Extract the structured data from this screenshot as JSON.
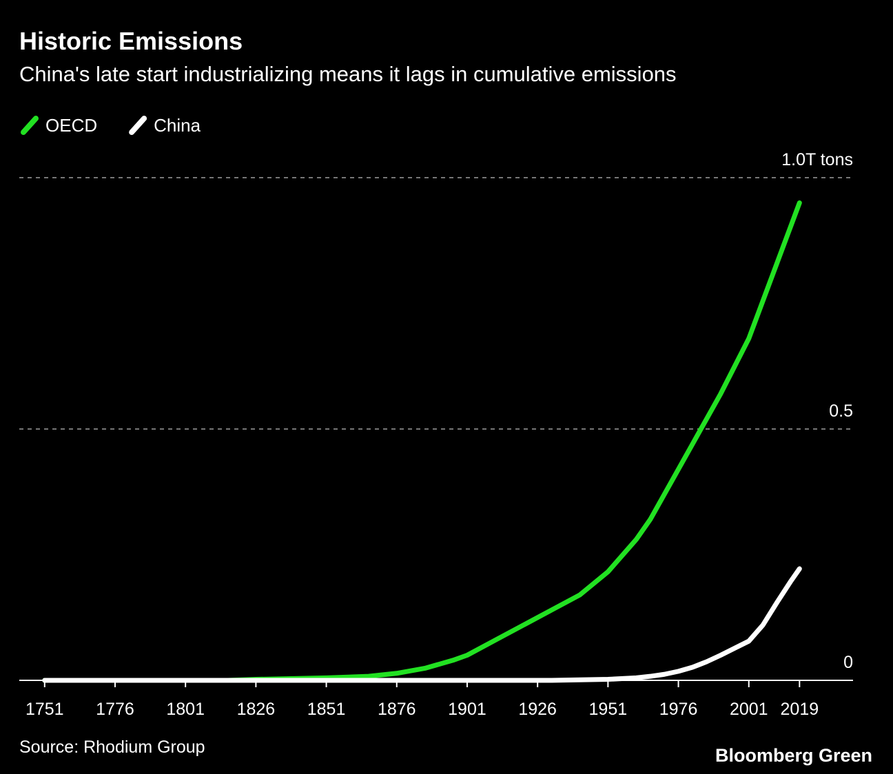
{
  "chart_data": {
    "type": "line",
    "title": "Historic Emissions",
    "subtitle": "China's late start industrializing means it lags in cumulative emissions",
    "source": "Source: Rhodium Group",
    "brand": "Bloomberg Green",
    "x": [
      1751,
      1776,
      1801,
      1816,
      1826,
      1851,
      1866,
      1876,
      1886,
      1896,
      1901,
      1911,
      1921,
      1931,
      1941,
      1951,
      1961,
      1966,
      1971,
      1976,
      1981,
      1986,
      1991,
      1996,
      2001,
      2006,
      2011,
      2016,
      2019
    ],
    "series": [
      {
        "name": "OECD",
        "color": "#22e122",
        "values": [
          0,
          0,
          0,
          0,
          0.002,
          0.005,
          0.008,
          0.014,
          0.024,
          0.04,
          0.05,
          0.08,
          0.11,
          0.14,
          0.17,
          0.216,
          0.28,
          0.32,
          0.37,
          0.42,
          0.47,
          0.52,
          0.57,
          0.625,
          0.68,
          0.755,
          0.83,
          0.905,
          0.95
        ]
      },
      {
        "name": "China",
        "color": "#ffffff",
        "values": [
          0,
          0,
          0,
          0,
          0,
          0,
          0,
          0,
          0,
          0,
          0,
          0,
          0,
          0,
          0.001,
          0.002,
          0.005,
          0.008,
          0.012,
          0.018,
          0.026,
          0.037,
          0.05,
          0.064,
          0.078,
          0.11,
          0.155,
          0.198,
          0.222
        ]
      }
    ],
    "xlim": [
      1742,
      2038
    ],
    "xticks": [
      1751,
      1776,
      1801,
      1826,
      1851,
      1876,
      1901,
      1926,
      1951,
      1976,
      2001,
      2019
    ],
    "ylim": [
      0,
      1
    ],
    "yticks": [
      0,
      0.5,
      {
        "value": 1,
        "label": "1.0T tons"
      }
    ],
    "grid": true
  }
}
